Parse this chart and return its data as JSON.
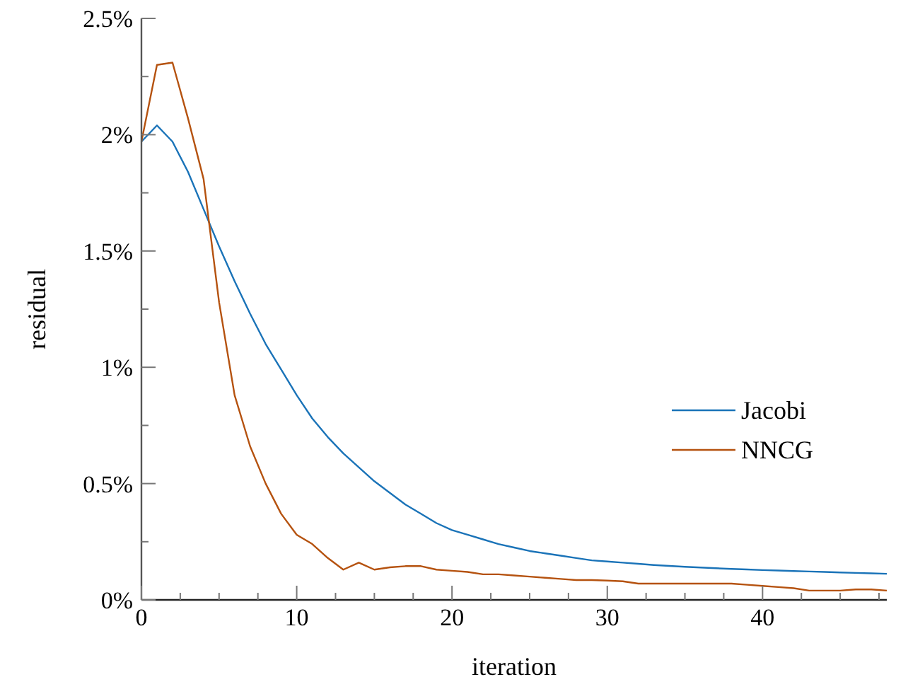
{
  "chart_data": {
    "type": "line",
    "xlabel": "iteration",
    "ylabel": "residual",
    "xlim": [
      0,
      48
    ],
    "ylim": [
      0,
      2.5
    ],
    "xticks": [
      0,
      {
        "value": 2.5,
        "label": null
      },
      {
        "value": 5,
        "label": null
      },
      {
        "value": 7.5,
        "label": null
      },
      10,
      {
        "value": 12.5,
        "label": null
      },
      {
        "value": 15,
        "label": null
      },
      {
        "value": 17.5,
        "label": null
      },
      20,
      {
        "value": 22.5,
        "label": null
      },
      {
        "value": 25,
        "label": null
      },
      {
        "value": 27.5,
        "label": null
      },
      30,
      {
        "value": 32.5,
        "label": null
      },
      {
        "value": 35,
        "label": null
      },
      {
        "value": 37.5,
        "label": null
      },
      40,
      {
        "value": 42.5,
        "label": null
      },
      {
        "value": 45,
        "label": null
      },
      {
        "value": 47.5,
        "label": null
      }
    ],
    "yticks": [
      {
        "value": 0,
        "label": "0%"
      },
      {
        "value": 0.25,
        "label": null
      },
      {
        "value": 0.5,
        "label": "0.5%"
      },
      {
        "value": 0.75,
        "label": null
      },
      {
        "value": 1,
        "label": "1%"
      },
      {
        "value": 1.25,
        "label": null
      },
      {
        "value": 1.5,
        "label": "1.5%"
      },
      {
        "value": 1.75,
        "label": null
      },
      {
        "value": 2,
        "label": "2%"
      },
      {
        "value": 2.25,
        "label": null
      },
      {
        "value": 2.5,
        "label": "2.5%"
      }
    ],
    "x": [
      0,
      1,
      2,
      3,
      4,
      5,
      6,
      7,
      8,
      9,
      10,
      11,
      12,
      13,
      14,
      15,
      16,
      17,
      18,
      19,
      20,
      21,
      22,
      23,
      24,
      25,
      26,
      27,
      28,
      29,
      30,
      31,
      32,
      33,
      34,
      35,
      36,
      37,
      38,
      39,
      40,
      41,
      42,
      43,
      44,
      45,
      46,
      47,
      48
    ],
    "grid": false,
    "legend": "right",
    "marker": "none",
    "line_style": "solid",
    "series": [
      {
        "name": "Jacobi",
        "color": "#1a73b8",
        "values": [
          1.97,
          2.04,
          1.97,
          1.84,
          1.68,
          1.52,
          1.37,
          1.23,
          1.1,
          0.99,
          0.88,
          0.78,
          0.7,
          0.63,
          0.57,
          0.51,
          0.46,
          0.41,
          0.37,
          0.33,
          0.3,
          0.28,
          0.26,
          0.24,
          0.225,
          0.21,
          0.2,
          0.19,
          0.18,
          0.17,
          0.165,
          0.16,
          0.155,
          0.15,
          0.146,
          0.142,
          0.139,
          0.136,
          0.133,
          0.131,
          0.128,
          0.126,
          0.124,
          0.122,
          0.12,
          0.118,
          0.116,
          0.114,
          0.112
        ]
      },
      {
        "name": "NNCG",
        "color": "#b5520f",
        "values": [
          1.97,
          2.3,
          2.31,
          2.07,
          1.81,
          1.28,
          0.88,
          0.66,
          0.5,
          0.37,
          0.28,
          0.24,
          0.18,
          0.13,
          0.16,
          0.13,
          0.14,
          0.145,
          0.145,
          0.13,
          0.125,
          0.12,
          0.11,
          0.11,
          0.105,
          0.1,
          0.095,
          0.09,
          0.085,
          0.085,
          0.083,
          0.08,
          0.07,
          0.07,
          0.07,
          0.07,
          0.07,
          0.07,
          0.07,
          0.065,
          0.06,
          0.055,
          0.05,
          0.04,
          0.04,
          0.04,
          0.045,
          0.045,
          0.04
        ]
      }
    ]
  }
}
